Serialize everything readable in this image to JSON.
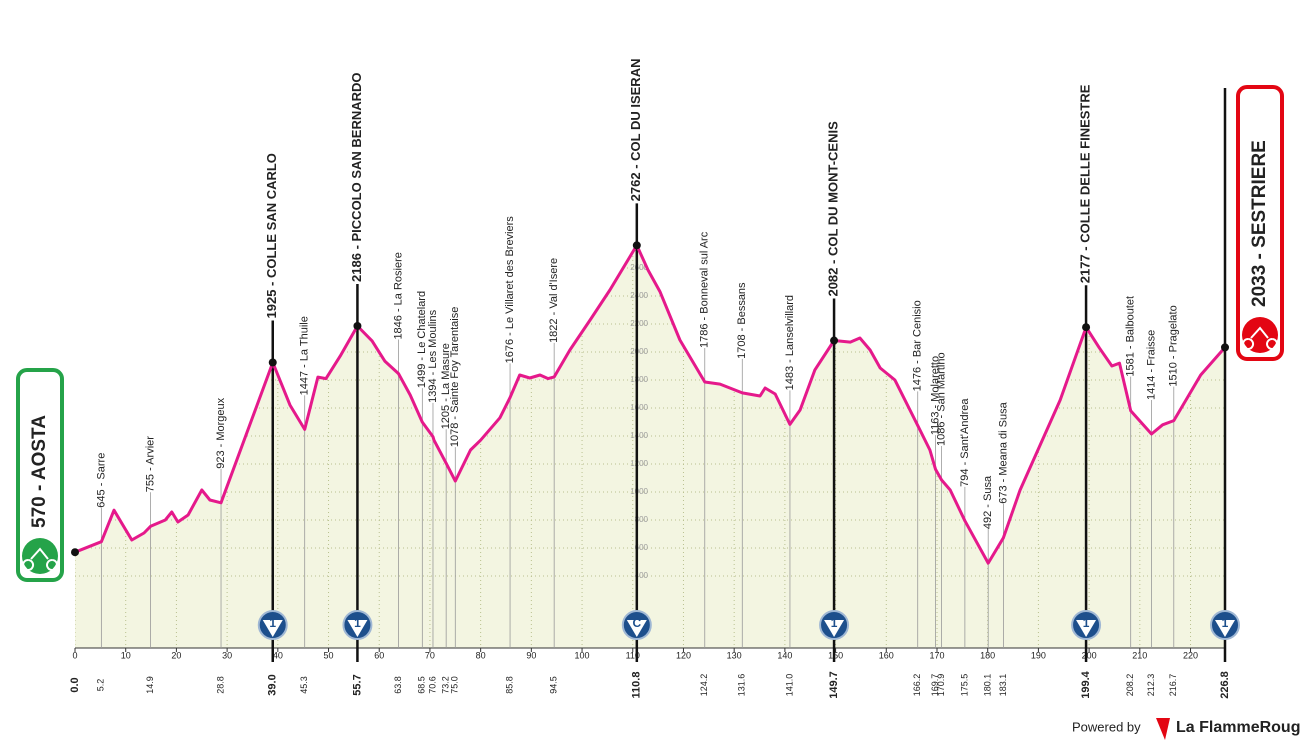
{
  "chart_data": {
    "type": "line",
    "x": [
      0,
      5.2,
      7.7,
      11.2,
      13.6,
      14.9,
      17.8,
      19.1,
      20.3,
      22.3,
      25.0,
      26.6,
      28.8,
      39.0,
      42.4,
      45.3,
      47.9,
      49.5,
      52.3,
      55.7,
      58.6,
      61.1,
      63.8,
      66.1,
      68.5,
      70.6,
      70.8,
      73.2,
      75.0,
      78,
      80,
      83.8,
      85.8,
      87.7,
      89.7,
      91.7,
      93.3,
      94.5,
      97.6,
      101.6,
      105.5,
      110.8,
      113,
      115.4,
      119.3,
      124.2,
      127.2,
      131.6,
      135.1,
      136.1,
      138.1,
      141.0,
      143,
      145.9,
      149.7,
      152.9,
      154.8,
      156.8,
      158.8,
      161.7,
      166.2,
      168.6,
      169.7,
      170.9,
      172.6,
      175.5,
      180.1,
      183.1,
      186.4,
      194.3,
      199.4,
      202,
      204.5,
      206,
      208.2,
      212.3,
      214.5,
      216.7,
      219,
      222,
      226.8
    ],
    "values": [
      570,
      645,
      870,
      657,
      707,
      755,
      800,
      857,
      786,
      836,
      1014,
      943,
      923,
      1925,
      1621,
      1447,
      1821,
      1810,
      1971,
      2186,
      2079,
      1935,
      1846,
      1693,
      1499,
      1394,
      1370,
      1205,
      1078,
      1300,
      1370,
      1530,
      1676,
      1836,
      1814,
      1836,
      1810,
      1822,
      2014,
      2229,
      2443,
      2762,
      2586,
      2429,
      2086,
      1786,
      1771,
      1708,
      1686,
      1743,
      1700,
      1483,
      1586,
      1871,
      2082,
      2071,
      2100,
      2014,
      1886,
      1800,
      1476,
      1300,
      1163,
      1086,
      1014,
      794,
      492,
      673,
      1014,
      1657,
      2177,
      2030,
      1900,
      1920,
      1581,
      1414,
      1480,
      1510,
      1650,
      1836,
      2033
    ],
    "color": "#e5198b",
    "fill": "#f3f5e1",
    "xlim": [
      0,
      226.8
    ],
    "ylim": [
      0,
      2800
    ],
    "xticks": [
      0,
      10,
      20,
      30,
      40,
      50,
      60,
      70,
      80,
      90,
      100,
      110,
      120,
      130,
      140,
      150,
      160,
      170,
      180,
      190,
      200,
      210,
      220
    ],
    "yticks": [
      400,
      600,
      800,
      1000,
      1200,
      1400,
      1600,
      1800,
      2000,
      2200,
      2400,
      2600
    ],
    "waypoints": [
      {
        "km": {
          "value": 0,
          "label": "0.0"
        },
        "alt": 570,
        "label": "570 - AOSTA",
        "style": "start"
      },
      {
        "km": 5.2,
        "alt": 645,
        "label": "645 - Sarre",
        "style": "town"
      },
      {
        "km": 14.9,
        "alt": 755,
        "label": "755 - Arvier",
        "style": "town"
      },
      {
        "km": 28.8,
        "alt": 923,
        "label": "923 - Morgeux",
        "style": "town"
      },
      {
        "km": {
          "value": 39,
          "label": "39.0"
        },
        "alt": 1925,
        "label": "1925 - COLLE SAN CARLO",
        "style": "summit",
        "gpm": "1"
      },
      {
        "km": 45.3,
        "alt": 1447,
        "label": "1447 - La Thuile",
        "style": "town"
      },
      {
        "km": 55.7,
        "alt": 2186,
        "label": "2186 - PICCOLO SAN BERNARDO",
        "style": "summit",
        "gpm": "1"
      },
      {
        "km": 63.8,
        "alt": 1846,
        "label": "1846 - La Rosiere",
        "style": "town"
      },
      {
        "km": 68.5,
        "alt": 1499,
        "label": "1499 - Le Chatelard",
        "style": "town"
      },
      {
        "km": 70.6,
        "alt": 1394,
        "label": "1394 - Les Moulins",
        "style": "town"
      },
      {
        "km": 73.2,
        "alt": 1205,
        "label": "1205 - La Masure",
        "style": "town"
      },
      {
        "km": {
          "value": 75,
          "label": "75.0"
        },
        "alt": 1078,
        "label": "1078 - Sainte Foy Tarentaise",
        "style": "town"
      },
      {
        "km": 85.8,
        "alt": 1676,
        "label": "1676 - Le Villaret des Breviers",
        "style": "town"
      },
      {
        "km": 94.5,
        "alt": 1822,
        "label": "1822 - Val d'Isere",
        "style": "town"
      },
      {
        "km": 110.8,
        "alt": 2762,
        "label": "2762 - COL DU ISERAN",
        "style": "summit",
        "gpm": "C"
      },
      {
        "km": 124.2,
        "alt": 1786,
        "label": "1786 - Bonneval sul Arc",
        "style": "town"
      },
      {
        "km": 131.6,
        "alt": 1708,
        "label": "1708 - Bessans",
        "style": "town"
      },
      {
        "km": {
          "value": 141,
          "label": "141.0"
        },
        "alt": 1483,
        "label": "1483 - Lanselvillard",
        "style": "town"
      },
      {
        "km": 149.7,
        "alt": 2082,
        "label": "2082 - COL DU MONT-CENIS",
        "style": "summit",
        "gpm": "1"
      },
      {
        "km": 166.2,
        "alt": 1476,
        "label": "1476 - Bar Cenisio",
        "style": "town"
      },
      {
        "km": 169.7,
        "alt": 1163,
        "label": "1163 - Molaretto",
        "style": "town"
      },
      {
        "km": 170.9,
        "alt": 1086,
        "label": "1086 - San Martino",
        "style": "town"
      },
      {
        "km": 175.5,
        "alt": 794,
        "label": "794 - Sant'Andrea",
        "style": "town"
      },
      {
        "km": 180.1,
        "alt": 492,
        "label": "492 - Susa",
        "style": "town"
      },
      {
        "km": 183.1,
        "alt": 673,
        "label": "673 - Meana di Susa",
        "style": "town"
      },
      {
        "km": 199.4,
        "alt": 2177,
        "label": "2177 - COLLE DELLE FINESTRE",
        "style": "summit",
        "gpm": "1"
      },
      {
        "km": 208.2,
        "alt": 1581,
        "label": "1581 - Balboutet",
        "style": "town"
      },
      {
        "km": 212.3,
        "alt": 1414,
        "label": "1414 - Fraisse",
        "style": "town"
      },
      {
        "km": 216.7,
        "alt": 1510,
        "label": "1510 - Pragelato",
        "style": "town"
      },
      {
        "km": 226.8,
        "alt": 2033,
        "label": "2033 - SESTRIERE",
        "style": "finish",
        "gpm": "1"
      }
    ]
  },
  "footer": {
    "powered": "Powered by",
    "brand": "La FlammeRouge"
  }
}
